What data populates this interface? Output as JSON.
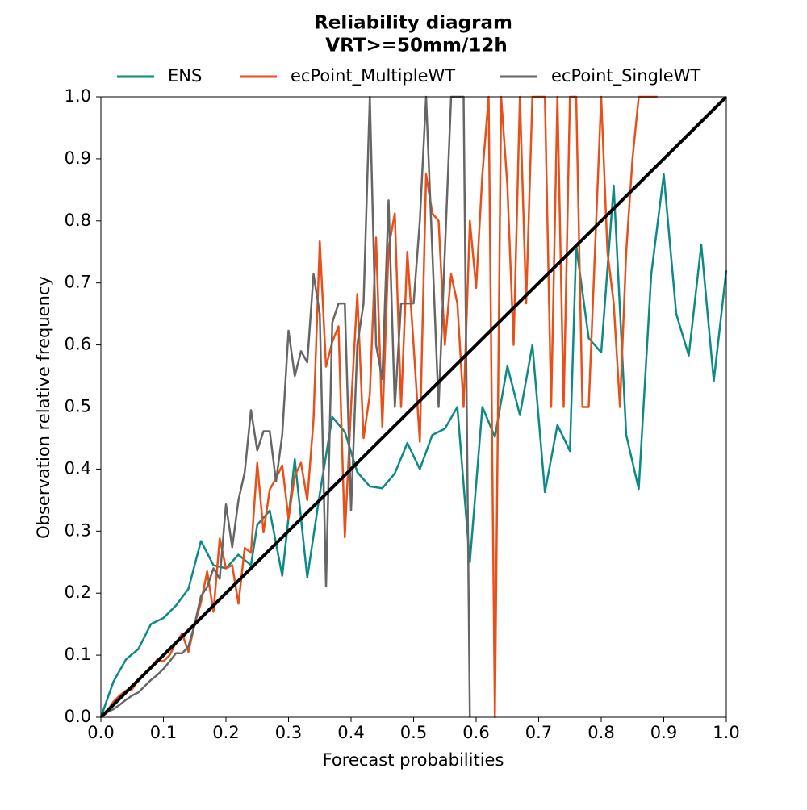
{
  "chart_data": {
    "type": "line",
    "title": "Reliability diagram",
    "subtitle": "VRT>=50mm/12h",
    "x_label": "Forecast probabilities",
    "y_label": "Observation relative frequency",
    "xlim": [
      0,
      1
    ],
    "ylim": [
      0,
      1
    ],
    "xticks": [
      {
        "value": 0,
        "label": "0.0"
      },
      0.1,
      0.2,
      0.3,
      0.4,
      0.5,
      0.6,
      0.7,
      0.8,
      0.9,
      {
        "value": 1,
        "label": "1.0"
      }
    ],
    "yticks": [
      {
        "value": 0,
        "label": "0.0"
      },
      0.1,
      0.2,
      0.3,
      0.4,
      0.5,
      0.6,
      0.7,
      0.8,
      0.9,
      {
        "value": 1,
        "label": "1.0"
      }
    ],
    "grid": false,
    "legend": "top",
    "series": [
      {
        "name": "ENS",
        "color": "#0e8a86",
        "x": [
          0,
          0.02,
          0.04,
          0.06,
          0.08,
          0.1,
          0.12,
          0.14,
          0.16,
          0.18,
          0.2,
          0.22,
          0.24,
          0.25,
          0.27,
          0.29,
          0.31,
          0.33,
          0.35,
          0.37,
          0.39,
          0.41,
          0.43,
          0.45,
          0.47,
          0.49,
          0.51,
          0.53,
          0.55,
          0.57,
          0.59,
          0.61,
          0.63,
          0.65,
          0.67,
          0.69,
          0.71,
          0.73,
          0.75,
          0.76,
          0.78,
          0.8,
          0.82,
          0.84,
          0.86,
          0.88,
          0.9,
          0.92,
          0.94,
          0.96,
          0.98,
          1.0
        ],
        "values": [
          0,
          0.057,
          0.093,
          0.11,
          0.15,
          0.16,
          0.18,
          0.207,
          0.284,
          0.245,
          0.24,
          0.262,
          0.245,
          0.31,
          0.333,
          0.228,
          0.416,
          0.225,
          0.36,
          0.484,
          0.46,
          0.395,
          0.372,
          0.369,
          0.393,
          0.442,
          0.4,
          0.455,
          0.465,
          0.5,
          0.25,
          0.5,
          0.452,
          0.566,
          0.487,
          0.6,
          0.363,
          0.471,
          0.429,
          0.76,
          0.611,
          0.588,
          0.857,
          0.455,
          0.368,
          0.714,
          0.875,
          0.65,
          0.583,
          0.762,
          0.542,
          0.72
        ]
      },
      {
        "name": "ecPoint_MultipleWT",
        "color": "#e8501a",
        "x": [
          0,
          0.01,
          0.02,
          0.03,
          0.04,
          0.05,
          0.06,
          0.07,
          0.08,
          0.09,
          0.1,
          0.11,
          0.12,
          0.13,
          0.14,
          0.15,
          0.16,
          0.17,
          0.18,
          0.19,
          0.2,
          0.21,
          0.22,
          0.23,
          0.24,
          0.25,
          0.26,
          0.27,
          0.28,
          0.29,
          0.3,
          0.31,
          0.32,
          0.33,
          0.34,
          0.35,
          0.36,
          0.37,
          0.38,
          0.39,
          0.4,
          0.41,
          0.42,
          0.43,
          0.44,
          0.45,
          0.46,
          0.47,
          0.48,
          0.49,
          0.5,
          0.51,
          0.52,
          0.53,
          0.54,
          0.55,
          0.56,
          0.57,
          0.58,
          0.59,
          0.6,
          0.61,
          0.62,
          0.63,
          0.64,
          0.65,
          0.66,
          0.67,
          0.68,
          0.69,
          0.7,
          0.71,
          0.72,
          0.73,
          0.74,
          0.75,
          0.76,
          0.77,
          0.78,
          0.79,
          0.8,
          0.81,
          0.82,
          0.83,
          0.84,
          0.85,
          0.86,
          0.87,
          0.88,
          0.89
        ],
        "values": [
          0,
          0.01,
          0.025,
          0.035,
          0.043,
          0.045,
          0.06,
          0.07,
          0.08,
          0.093,
          0.09,
          0.1,
          0.12,
          0.135,
          0.105,
          0.15,
          0.185,
          0.235,
          0.17,
          0.288,
          0.24,
          0.245,
          0.183,
          0.273,
          0.265,
          0.41,
          0.298,
          0.367,
          0.385,
          0.406,
          0.32,
          0.389,
          0.41,
          0.35,
          0.48,
          0.767,
          0.565,
          0.605,
          0.63,
          0.29,
          0.5,
          0.682,
          0.45,
          0.52,
          0.773,
          0.468,
          0.757,
          0.812,
          0.5,
          0.75,
          0.6,
          0.444,
          0.875,
          0.812,
          0.8,
          0.6,
          0.714,
          0.667,
          0.5,
          0.8,
          0.692,
          0.875,
          1,
          0,
          1,
          0.857,
          0.6,
          1,
          0.667,
          1,
          1,
          1,
          0.5,
          1,
          0.5,
          1,
          1,
          0.5,
          0.5,
          0.75,
          1,
          0.75,
          0.667,
          0.5,
          0.75,
          0.9,
          1,
          1,
          1,
          1
        ]
      },
      {
        "name": "ecPoint_SingleWT",
        "color": "#666666",
        "x": [
          0,
          0.01,
          0.02,
          0.03,
          0.04,
          0.05,
          0.06,
          0.07,
          0.08,
          0.09,
          0.1,
          0.11,
          0.12,
          0.13,
          0.14,
          0.15,
          0.16,
          0.17,
          0.18,
          0.19,
          0.2,
          0.21,
          0.22,
          0.23,
          0.24,
          0.25,
          0.26,
          0.27,
          0.28,
          0.29,
          0.3,
          0.31,
          0.32,
          0.33,
          0.34,
          0.35,
          0.36,
          0.37,
          0.38,
          0.39,
          0.4,
          0.41,
          0.42,
          0.43,
          0.44,
          0.45,
          0.46,
          0.47,
          0.48,
          0.49,
          0.5,
          0.51,
          0.52,
          0.53,
          0.54,
          0.55,
          0.56,
          0.57,
          0.58,
          0.59
        ],
        "values": [
          0,
          0.008,
          0.013,
          0.02,
          0.028,
          0.035,
          0.04,
          0.05,
          0.06,
          0.068,
          0.078,
          0.09,
          0.103,
          0.103,
          0.114,
          0.15,
          0.195,
          0.21,
          0.24,
          0.223,
          0.343,
          0.274,
          0.35,
          0.395,
          0.495,
          0.43,
          0.461,
          0.461,
          0.38,
          0.455,
          0.623,
          0.55,
          0.59,
          0.572,
          0.714,
          0.65,
          0.211,
          0.636,
          0.667,
          0.667,
          0.333,
          0.6,
          0.667,
          1,
          0.6,
          0.545,
          0.833,
          0.5,
          0.667,
          0.667,
          0.667,
          0.8,
          1,
          0.75,
          0.5,
          0.75,
          1,
          1,
          1,
          0
        ]
      }
    ],
    "reference_line": {
      "x": [
        0,
        1
      ],
      "values": [
        0,
        1
      ],
      "color": "#000000"
    }
  }
}
